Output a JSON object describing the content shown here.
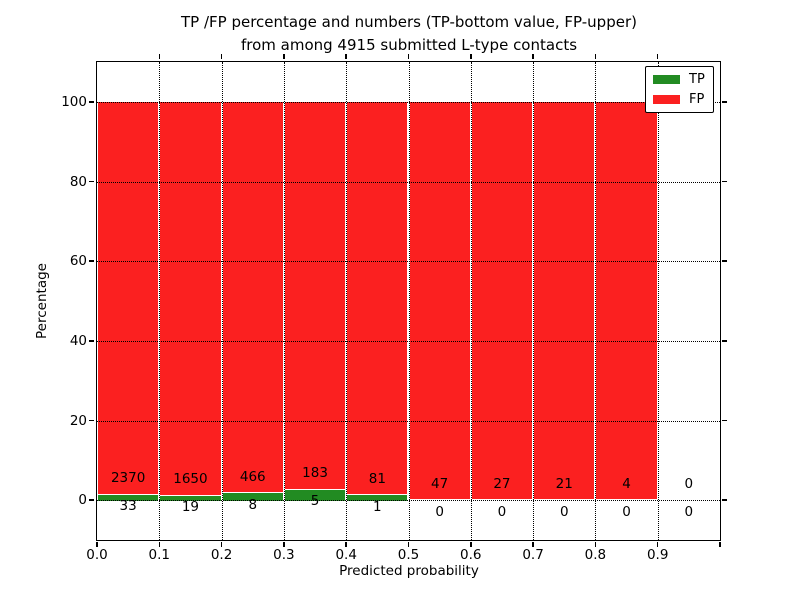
{
  "title": {
    "line1": "TP /FP percentage and numbers (TP-bottom value, FP-upper)",
    "line2": "from among 4915 submitted L-type contacts"
  },
  "axes": {
    "xlabel": "Predicted probability",
    "ylabel": "Percentage",
    "x_tick_labels": [
      "0.0",
      "0.1",
      "0.2",
      "0.3",
      "0.4",
      "0.5",
      "0.6",
      "0.7",
      "0.8",
      "0.9"
    ],
    "y_tick_labels": [
      "0",
      "20",
      "40",
      "60",
      "80",
      "100"
    ],
    "y_tick_values": [
      0,
      20,
      40,
      60,
      80,
      100
    ],
    "xlim": [
      0.0,
      1.0
    ],
    "ylim": [
      -10,
      110
    ],
    "grid": "dotted"
  },
  "legend": {
    "position": "upper-right",
    "entries": [
      {
        "label": "TP",
        "color": "#228B22"
      },
      {
        "label": "FP",
        "color": "#fb2020"
      }
    ]
  },
  "chart_data": {
    "type": "bar",
    "stacked": true,
    "title": "TP /FP percentage and numbers (TP-bottom value, FP-upper) from among 4915 submitted L-type contacts",
    "xlabel": "Predicted probability",
    "ylabel": "Percentage",
    "total_contacts": 4915,
    "bin_width": 0.1,
    "bin_starts": [
      0.0,
      0.1,
      0.2,
      0.3,
      0.4,
      0.5,
      0.6,
      0.7,
      0.8,
      0.9
    ],
    "series": [
      {
        "name": "TP",
        "color": "#228B22",
        "counts": [
          33,
          19,
          8,
          5,
          1,
          0,
          0,
          0,
          0,
          0
        ],
        "pct": [
          1.37,
          1.14,
          1.69,
          2.66,
          1.22,
          0,
          0,
          0,
          0,
          0
        ]
      },
      {
        "name": "FP",
        "color": "#fb2020",
        "counts": [
          2370,
          1650,
          466,
          183,
          81,
          47,
          27,
          21,
          4,
          0
        ],
        "pct": [
          98.63,
          98.86,
          98.31,
          97.34,
          98.78,
          100,
          100,
          100,
          100,
          0
        ]
      }
    ]
  }
}
